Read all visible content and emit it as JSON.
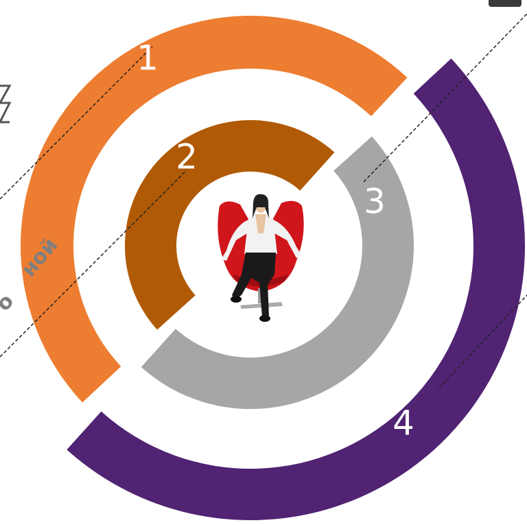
{
  "labels": [
    "1",
    "2",
    "3",
    "4"
  ],
  "side_texts": [
    "ной",
    "о"
  ]
}
